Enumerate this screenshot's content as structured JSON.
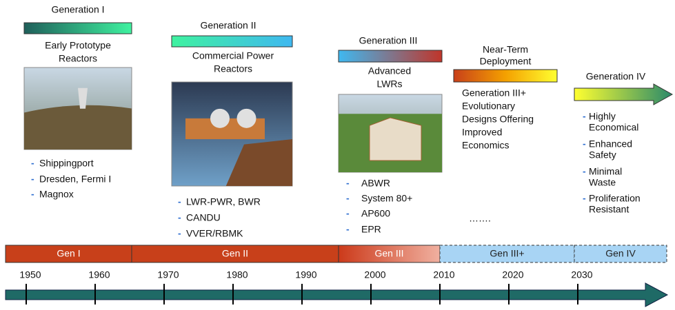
{
  "generations": [
    {
      "header": [
        "Generation I"
      ],
      "subtitle": [
        "Early Prototype",
        "Reactors"
      ],
      "items": [
        [
          "Shippingport"
        ],
        [
          "Dresden, Fermi I"
        ],
        [
          "Magnox"
        ]
      ]
    },
    {
      "header": [
        "Generation II"
      ],
      "subtitle": [
        "Commercial Power",
        "Reactors"
      ],
      "items": [
        [
          "LWR-PWR, BWR"
        ],
        [
          "CANDU"
        ],
        [
          "VVER/RBMK"
        ]
      ]
    },
    {
      "header": [
        "Generation III"
      ],
      "subtitle": [
        "Advanced",
        "LWRs"
      ],
      "items": [
        [
          "ABWR"
        ],
        [
          "System 80+"
        ],
        [
          "AP600"
        ],
        [
          "EPR"
        ]
      ]
    },
    {
      "header": [
        "Near-Term",
        "Deployment"
      ],
      "subtitle": [
        "Generation III+",
        "Evolutionary",
        "Designs Offering",
        "Improved",
        "Economics"
      ],
      "note": "……."
    },
    {
      "header": [
        "Generation IV"
      ],
      "items": [
        [
          "Highly",
          "Economical"
        ],
        [
          "Enhanced",
          "Safety"
        ],
        [
          "Minimal",
          "Waste"
        ],
        [
          "Proliferation",
          "Resistant"
        ]
      ]
    }
  ],
  "timeline": {
    "segments": [
      "Gen I",
      "Gen II",
      "Gen III",
      "Gen III+",
      "Gen IV"
    ],
    "years": [
      1950,
      1960,
      1970,
      1980,
      1990,
      2000,
      2010,
      2020,
      2030
    ]
  }
}
